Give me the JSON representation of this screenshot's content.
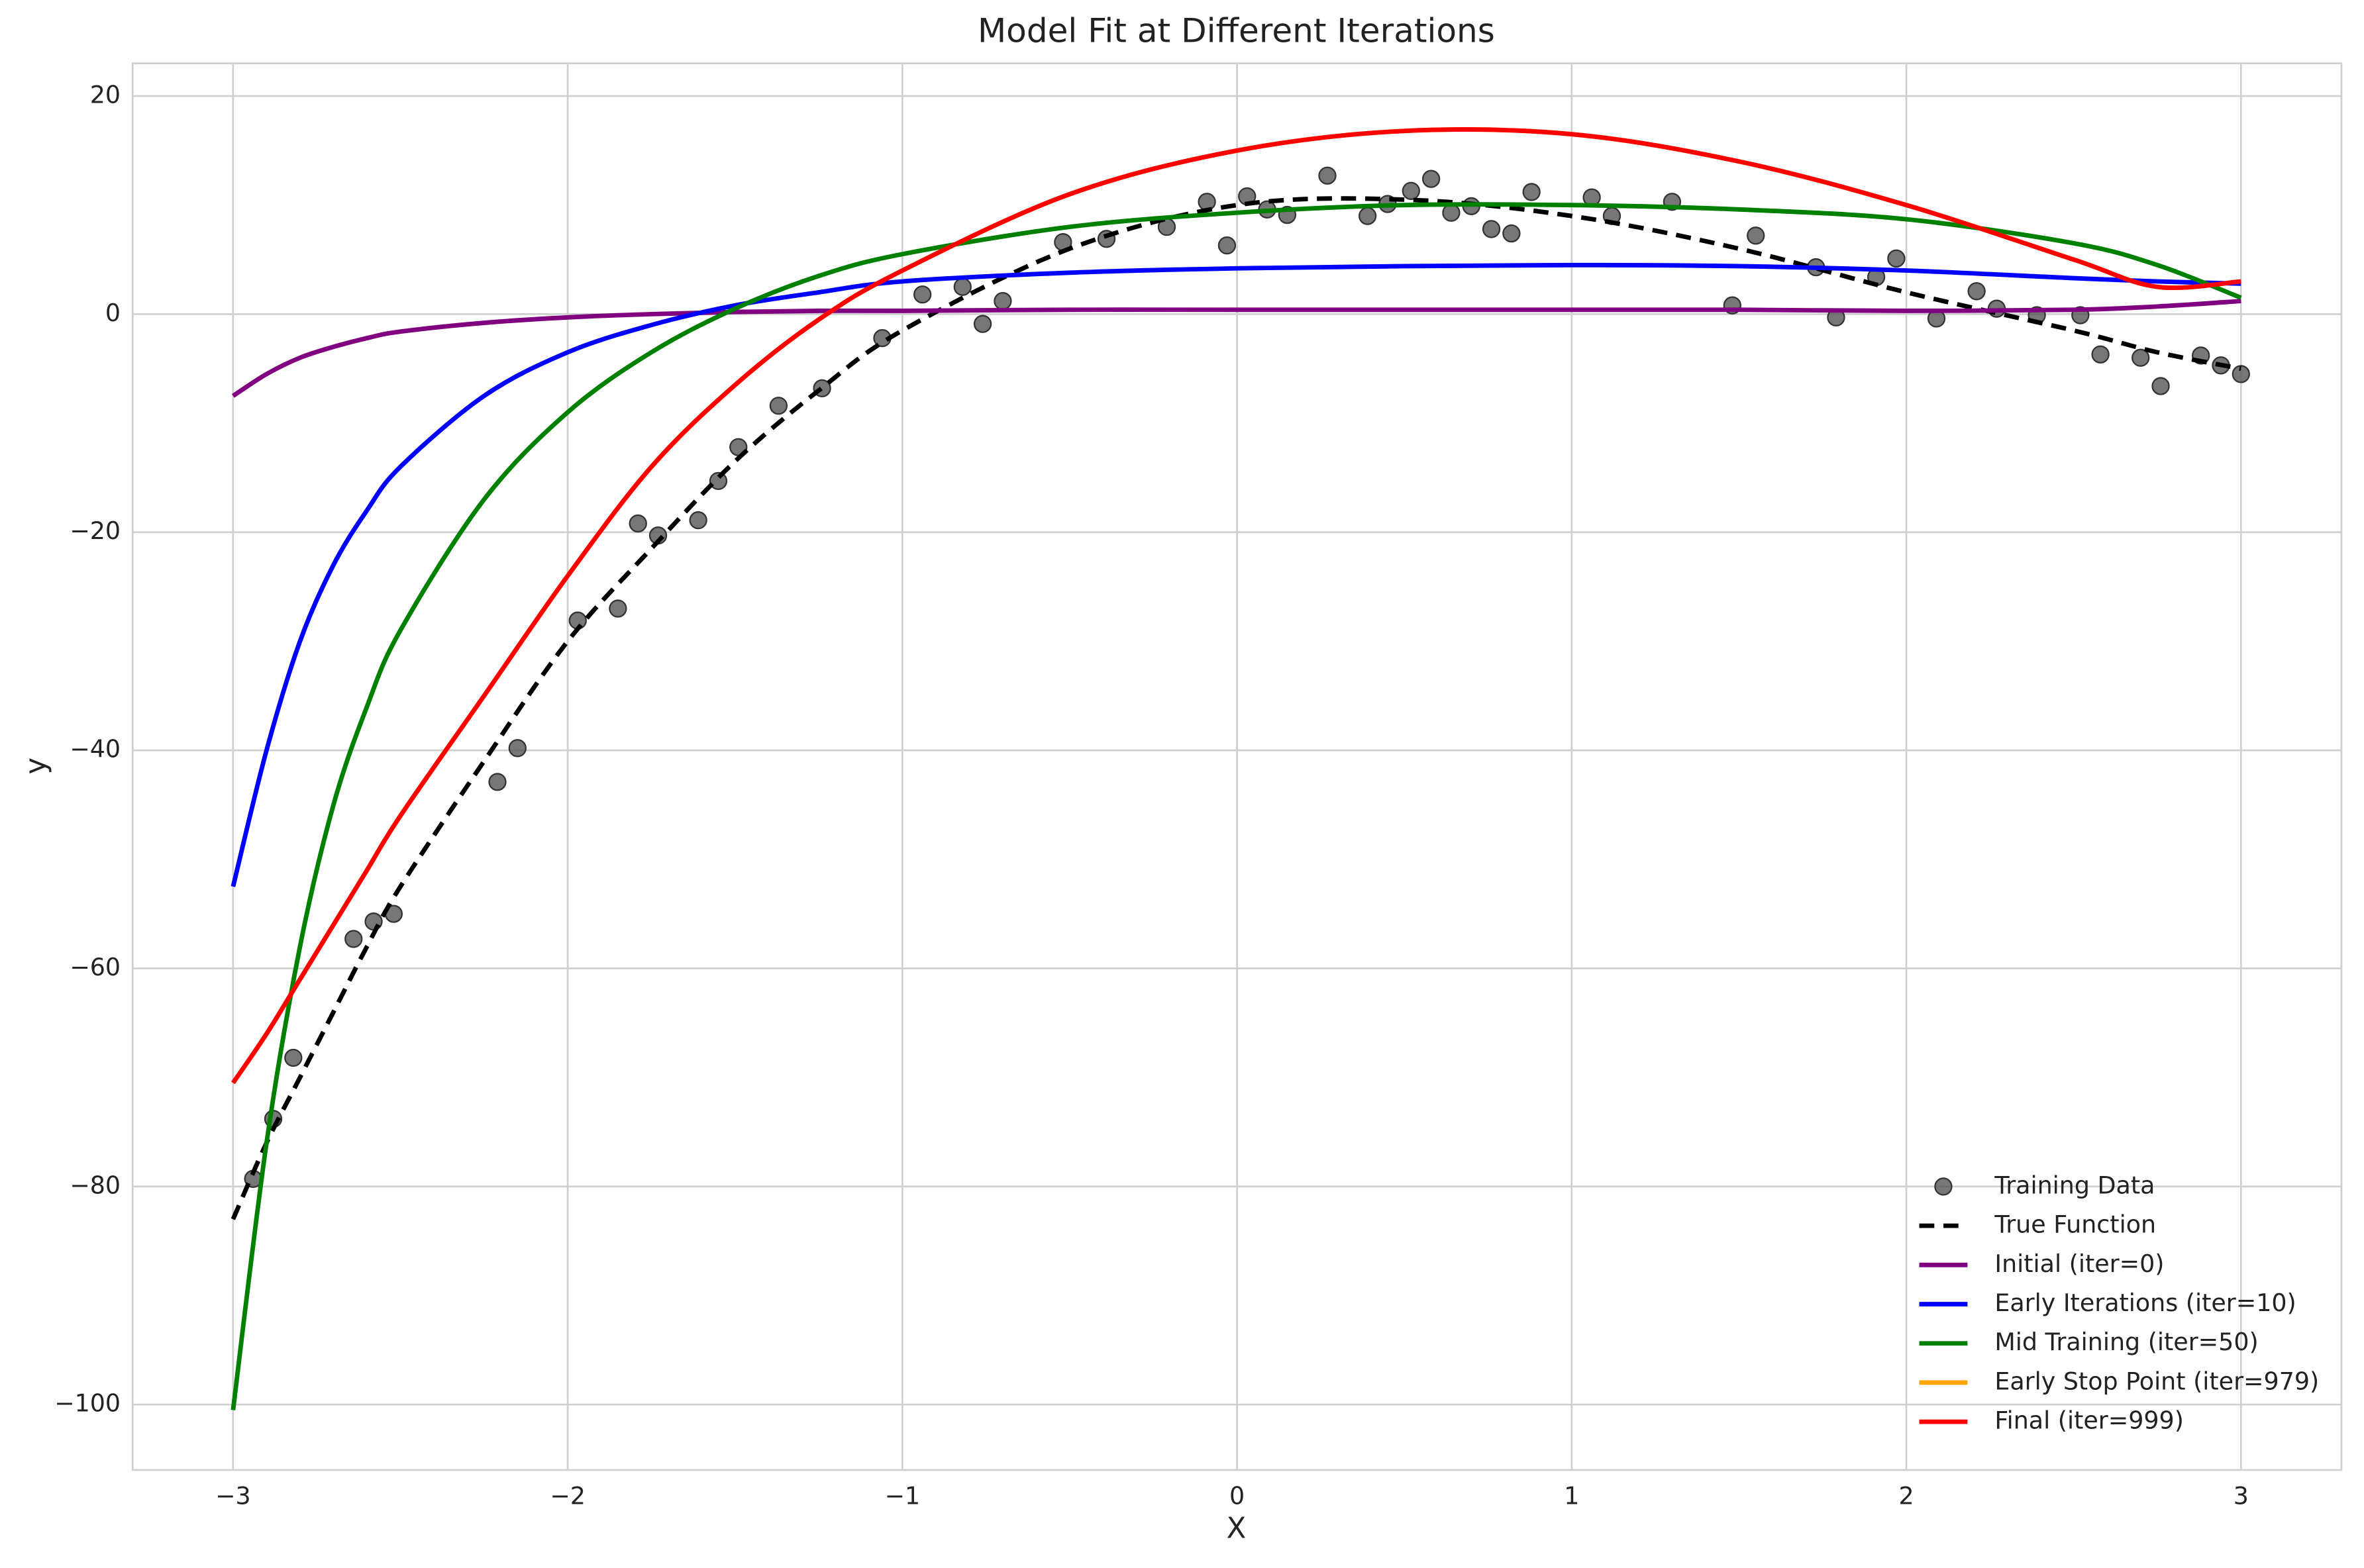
{
  "chart_data": {
    "type": "line",
    "title": "Model Fit at Different Iterations",
    "xlabel": "X",
    "ylabel": "y",
    "xlim": [
      -3.3,
      3.3
    ],
    "ylim": [
      -106,
      23
    ],
    "xticks": [
      {
        "value": -3,
        "label": "−3"
      },
      {
        "value": -2,
        "label": "−2"
      },
      {
        "value": -1,
        "label": "−1"
      },
      0,
      1,
      2,
      3
    ],
    "yticks": [
      {
        "value": -100,
        "label": "−100"
      },
      {
        "value": -80,
        "label": "−80"
      },
      {
        "value": -60,
        "label": "−60"
      },
      {
        "value": -40,
        "label": "−40"
      },
      {
        "value": -20,
        "label": "−20"
      },
      0,
      20
    ],
    "grid": true,
    "legend": "lower right",
    "x": [
      -3,
      -2.9,
      -2.8,
      -2.7,
      -2.6,
      -2.5,
      -2.25,
      -2,
      -1.75,
      -1.5,
      -1.25,
      -1,
      -0.5,
      0,
      0.5,
      1,
      1.5,
      2,
      2.5,
      2.75,
      3
    ],
    "series": [
      {
        "name": "Training Data",
        "color": "#555555",
        "style": "markers",
        "x": [
          -2.94,
          -2.88,
          -2.82,
          -2.64,
          -2.58,
          -2.52,
          -2.21,
          -2.15,
          -1.97,
          -1.85,
          -1.79,
          -1.73,
          -1.61,
          -1.55,
          -1.49,
          -1.37,
          -1.24,
          -1.06,
          -0.94,
          -0.82,
          -0.76,
          -0.7,
          -0.52,
          -0.39,
          -0.21,
          -0.09,
          -0.03,
          0.03,
          0.09,
          0.15,
          0.27,
          0.39,
          0.45,
          0.52,
          0.58,
          0.64,
          0.7,
          0.76,
          0.82,
          0.88,
          1.06,
          1.12,
          1.3,
          1.48,
          1.55,
          1.73,
          1.79,
          1.91,
          1.97,
          2.09,
          2.21,
          2.27,
          2.39,
          2.52,
          2.58,
          2.7,
          2.76,
          2.88,
          2.94,
          3.0
        ],
        "values": [
          -79.3,
          -73.8,
          -68.2,
          -57.3,
          -55.7,
          -55.0,
          -42.9,
          -39.8,
          -28.1,
          -27.0,
          -19.2,
          -20.3,
          -18.9,
          -15.3,
          -12.2,
          -8.4,
          -6.8,
          -2.2,
          1.8,
          2.5,
          -0.9,
          1.2,
          6.6,
          6.9,
          8.0,
          10.3,
          6.3,
          10.8,
          9.6,
          9.1,
          12.7,
          9.0,
          10.1,
          11.3,
          12.4,
          9.3,
          9.9,
          7.8,
          7.4,
          11.2,
          10.7,
          9.0,
          10.3,
          0.8,
          7.2,
          4.3,
          -0.3,
          3.4,
          5.1,
          -0.4,
          2.1,
          0.5,
          -0.1,
          -0.1,
          -3.7,
          -4.0,
          -6.6,
          -3.8,
          -4.7,
          -5.5
        ]
      },
      {
        "name": "True Function",
        "color": "#000000",
        "style": "dashed",
        "values": [
          -83,
          -76,
          -70,
          -64,
          -58,
          -52.5,
          -41,
          -30,
          -21.5,
          -13.5,
          -7,
          -1.5,
          6,
          10,
          10.5,
          9,
          6,
          2,
          -1.5,
          -3.5,
          -5
        ]
      },
      {
        "name": "Initial (iter=0)",
        "color": "#800080",
        "style": "solid",
        "values": [
          -7.5,
          -5.5,
          -4,
          -3,
          -2.2,
          -1.6,
          -0.8,
          -0.3,
          0,
          0.2,
          0.3,
          0.3,
          0.4,
          0.4,
          0.4,
          0.4,
          0.4,
          0.3,
          0.4,
          0.7,
          1.2
        ]
      },
      {
        "name": "Early Iterations (iter=10)",
        "color": "#0000ff",
        "style": "solid",
        "values": [
          -52.5,
          -40,
          -30,
          -23,
          -18,
          -14,
          -7.5,
          -3.5,
          -1,
          0.8,
          2,
          3,
          3.8,
          4.2,
          4.4,
          4.5,
          4.4,
          4,
          3.3,
          3,
          2.8
        ]
      },
      {
        "name": "Mid Training (iter=50)",
        "color": "#008000",
        "style": "solid",
        "values": [
          -100.5,
          -76,
          -58,
          -45,
          -36,
          -29,
          -17,
          -9,
          -3.5,
          0.5,
          3.5,
          5.5,
          8,
          9.3,
          10,
          10,
          9.6,
          8.7,
          6.5,
          4.5,
          1.5
        ]
      },
      {
        "name": "Early Stop Point (iter=979)",
        "color": "#ffa500",
        "style": "solid",
        "values": [
          -70.5,
          -66,
          -61,
          -56,
          -51,
          -46,
          -35,
          -24,
          -14,
          -6.5,
          -0.5,
          4,
          11,
          15,
          16.8,
          16.5,
          14,
          10,
          5,
          2.5,
          3
        ]
      },
      {
        "name": "Final (iter=999)",
        "color": "#ff0000",
        "style": "solid",
        "values": [
          -70.5,
          -66,
          -61,
          -56,
          -51,
          -46,
          -35,
          -24,
          -14,
          -6.5,
          -0.5,
          4,
          11,
          15,
          16.8,
          16.5,
          14,
          10,
          5,
          2.5,
          3
        ]
      }
    ]
  }
}
